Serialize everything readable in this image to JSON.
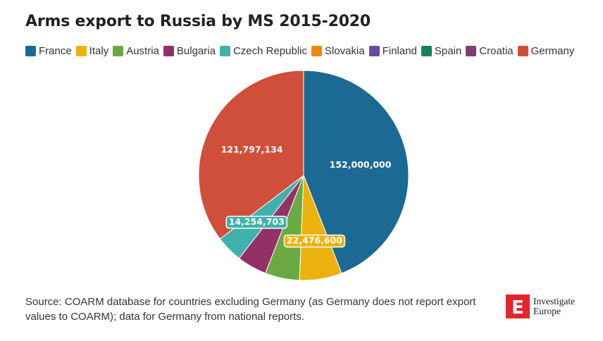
{
  "chart_data": {
    "type": "pie",
    "title": "Arms export to Russia by MS 2015-2020",
    "legend_position": "top-left",
    "slices": [
      {
        "name": "France",
        "value": 152000000,
        "color": "#1c6993",
        "label": "152,000,000"
      },
      {
        "name": "Italy",
        "value": 22476600,
        "color": "#ecb10d",
        "label": "22,476,600"
      },
      {
        "name": "Austria",
        "value": 18300000,
        "color": "#6aaa44",
        "label": ""
      },
      {
        "name": "Bulgaria",
        "value": 15800000,
        "color": "#933068",
        "label": ""
      },
      {
        "name": "Czech Republic",
        "value": 14254703,
        "color": "#40b0aa",
        "label": "14,254,703"
      },
      {
        "name": "Slovakia",
        "value": 0,
        "color": "#ec8a0d",
        "label": ""
      },
      {
        "name": "Finland",
        "value": 0,
        "color": "#6a49a1",
        "label": ""
      },
      {
        "name": "Spain",
        "value": 0,
        "color": "#15835b",
        "label": ""
      },
      {
        "name": "Croatia",
        "value": 0,
        "color": "#7f3e72",
        "label": ""
      },
      {
        "name": "Germany",
        "value": 121797134,
        "color": "#cf4f3b",
        "label": "121,797,134"
      }
    ]
  },
  "source": "Source: COARM database for countries excluding Germany (as Germany does not report export values to COARM); data for Germany from national reports.",
  "logo": {
    "line1": "Investigate",
    "line2": "Europe",
    "mark": "E",
    "color": "#e3262c"
  }
}
